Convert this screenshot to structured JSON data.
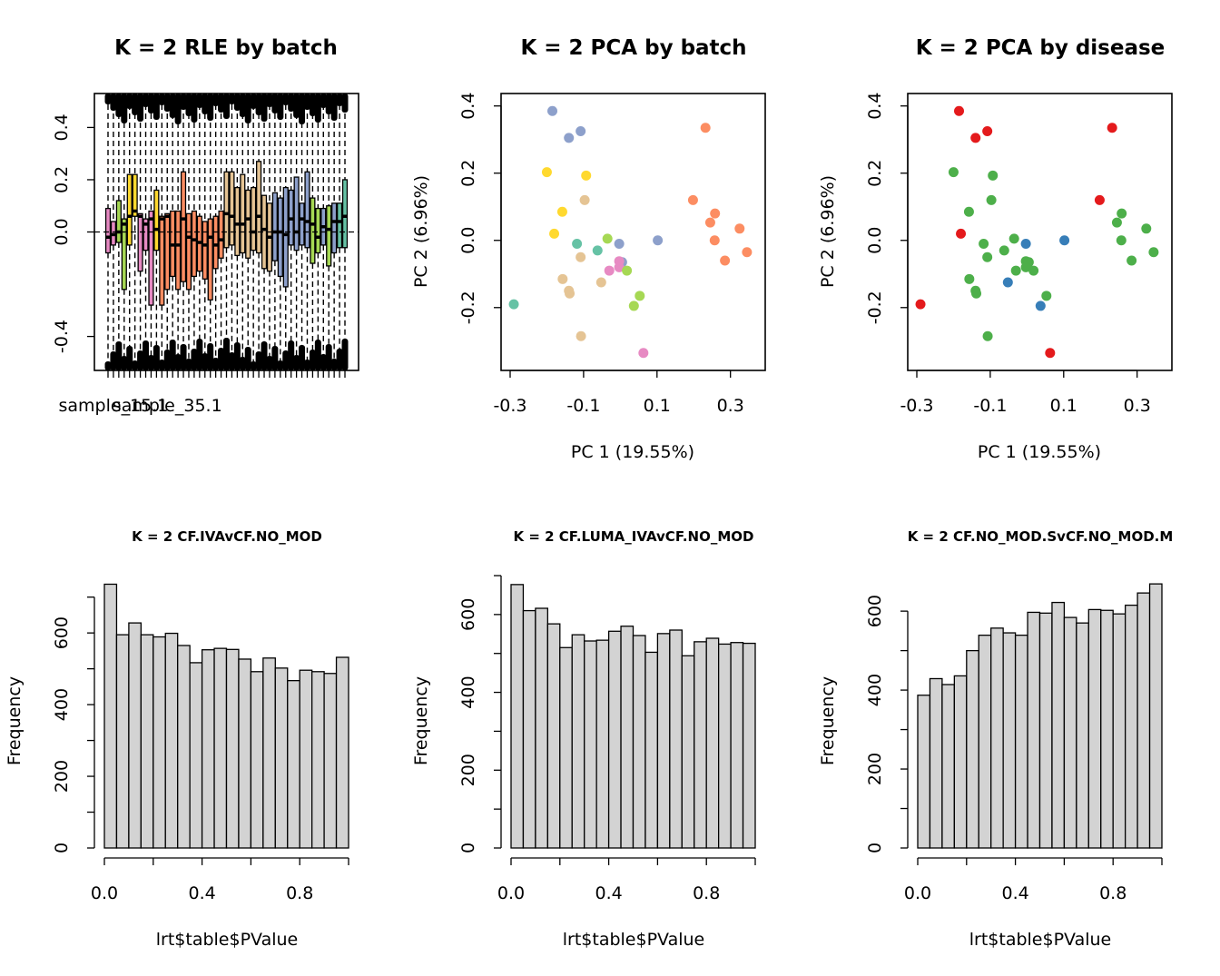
{
  "chart_data": [
    {
      "type": "boxplot",
      "title": "K = 2 RLE by batch",
      "ylim": [
        -0.53,
        0.53
      ],
      "yticks": [
        -0.4,
        0.0,
        0.2,
        0.4
      ],
      "ytick_labels": [
        "-0.4",
        "0.0",
        "0.2",
        "0.4"
      ],
      "xtick_labels": [
        "sample_15.1",
        "sample_35.1"
      ],
      "xtick_label_positions": [
        1,
        11
      ],
      "boxes": [
        {
          "q1": -0.08,
          "med": -0.02,
          "q3": 0.09,
          "color": "#E78AC3"
        },
        {
          "q1": -0.05,
          "med": -0.01,
          "q3": 0.04,
          "color": "#E78AC3"
        },
        {
          "q1": -0.04,
          "med": 0.0,
          "q3": 0.12,
          "color": "#A6D854"
        },
        {
          "q1": -0.22,
          "med": 0.03,
          "q3": 0.05,
          "color": "#A6D854"
        },
        {
          "q1": -0.05,
          "med": 0.06,
          "q3": 0.22,
          "color": "#FFD92F"
        },
        {
          "q1": 0.06,
          "med": 0.08,
          "q3": 0.22,
          "color": "#FFD92F"
        },
        {
          "q1": -0.15,
          "med": 0.06,
          "q3": 0.07,
          "color": "#E78AC3"
        },
        {
          "q1": -0.07,
          "med": 0.03,
          "q3": 0.05,
          "color": "#E78AC3"
        },
        {
          "q1": -0.28,
          "med": 0.05,
          "q3": 0.08,
          "color": "#E78AC3"
        },
        {
          "q1": -0.07,
          "med": 0.01,
          "q3": 0.16,
          "color": "#FFD92F"
        },
        {
          "q1": -0.28,
          "med": 0.05,
          "q3": 0.06,
          "color": "#FC8D62"
        },
        {
          "q1": -0.22,
          "med": 0.06,
          "q3": 0.07,
          "color": "#FC8D62"
        },
        {
          "q1": -0.17,
          "med": -0.05,
          "q3": 0.08,
          "color": "#FC8D62"
        },
        {
          "q1": -0.22,
          "med": -0.05,
          "q3": 0.08,
          "color": "#FC8D62"
        },
        {
          "q1": -0.19,
          "med": 0.05,
          "q3": 0.23,
          "color": "#FC8D62"
        },
        {
          "q1": -0.22,
          "med": -0.02,
          "q3": 0.07,
          "color": "#FC8D62"
        },
        {
          "q1": -0.17,
          "med": -0.03,
          "q3": 0.08,
          "color": "#FC8D62"
        },
        {
          "q1": -0.15,
          "med": -0.04,
          "q3": 0.06,
          "color": "#FC8D62"
        },
        {
          "q1": -0.18,
          "med": -0.05,
          "q3": 0.04,
          "color": "#FC8D62"
        },
        {
          "q1": -0.26,
          "med": -0.02,
          "q3": 0.05,
          "color": "#FC8D62"
        },
        {
          "q1": -0.14,
          "med": -0.05,
          "q3": 0.06,
          "color": "#FC8D62"
        },
        {
          "q1": -0.1,
          "med": -0.03,
          "q3": 0.08,
          "color": "#FC8D62"
        },
        {
          "q1": -0.06,
          "med": 0.07,
          "q3": 0.23,
          "color": "#E5C494"
        },
        {
          "q1": -0.05,
          "med": 0.06,
          "q3": 0.23,
          "color": "#E5C494"
        },
        {
          "q1": -0.09,
          "med": 0.03,
          "q3": 0.17,
          "color": "#E5C494"
        },
        {
          "q1": -0.08,
          "med": 0.03,
          "q3": 0.22,
          "color": "#E5C494"
        },
        {
          "q1": -0.1,
          "med": 0.05,
          "q3": 0.16,
          "color": "#E5C494"
        },
        {
          "q1": -0.07,
          "med": 0.0,
          "q3": 0.17,
          "color": "#E5C494"
        },
        {
          "q1": -0.08,
          "med": 0.06,
          "q3": 0.27,
          "color": "#E5C494"
        },
        {
          "q1": -0.14,
          "med": 0.01,
          "q3": 0.14,
          "color": "#E5C494"
        },
        {
          "q1": -0.15,
          "med": -0.02,
          "q3": 0.11,
          "color": "#E5C494"
        },
        {
          "q1": -0.11,
          "med": 0.0,
          "q3": 0.15,
          "color": "#8DA0CB"
        },
        {
          "q1": -0.17,
          "med": 0.0,
          "q3": 0.13,
          "color": "#8DA0CB"
        },
        {
          "q1": -0.21,
          "med": -0.01,
          "q3": 0.17,
          "color": "#8DA0CB"
        },
        {
          "q1": -0.05,
          "med": 0.05,
          "q3": 0.16,
          "color": "#8DA0CB"
        },
        {
          "q1": -0.07,
          "med": 0.0,
          "q3": 0.21,
          "color": "#8DA0CB"
        },
        {
          "q1": -0.05,
          "med": 0.05,
          "q3": 0.11,
          "color": "#8DA0CB"
        },
        {
          "q1": -0.06,
          "med": 0.04,
          "q3": 0.23,
          "color": "#8DA0CB"
        },
        {
          "q1": -0.12,
          "med": 0.03,
          "q3": 0.13,
          "color": "#A6D854"
        },
        {
          "q1": -0.08,
          "med": -0.02,
          "q3": 0.09,
          "color": "#A6D854"
        },
        {
          "q1": -0.05,
          "med": 0.02,
          "q3": 0.09,
          "color": "#8DA0CB"
        },
        {
          "q1": -0.13,
          "med": 0.01,
          "q3": 0.1,
          "color": "#A6D854"
        },
        {
          "q1": -0.08,
          "med": 0.04,
          "q3": 0.11,
          "color": "#8DA0CB"
        },
        {
          "q1": -0.06,
          "med": 0.04,
          "q3": 0.11,
          "color": "#66C2A5"
        },
        {
          "q1": -0.06,
          "med": 0.06,
          "q3": 0.2,
          "color": "#66C2A5"
        }
      ]
    },
    {
      "type": "scatter",
      "title": "K = 2 PCA by batch",
      "xlabel": "PC 1 (19.55%)",
      "ylabel": "PC 2 (6.96%)",
      "xlim": [
        -0.3,
        0.37
      ],
      "ylim": [
        -0.36,
        0.41
      ],
      "xticks": [
        -0.3,
        -0.1,
        0.1,
        0.3
      ],
      "xtick_labels": [
        "-0.3",
        "-0.1",
        "0.1",
        "0.3"
      ],
      "yticks": [
        -0.2,
        0.0,
        0.2,
        0.4
      ],
      "ytick_labels": [
        "-0.2",
        "0.0",
        "0.2",
        "0.4"
      ],
      "points": [
        {
          "x": -0.185,
          "y": 0.385,
          "color": "#8DA0CB"
        },
        {
          "x": -0.14,
          "y": 0.305,
          "color": "#8DA0CB"
        },
        {
          "x": -0.108,
          "y": 0.325,
          "color": "#8DA0CB"
        },
        {
          "x": -0.2,
          "y": 0.203,
          "color": "#FFD92F"
        },
        {
          "x": -0.093,
          "y": 0.193,
          "color": "#FFD92F"
        },
        {
          "x": -0.097,
          "y": 0.12,
          "color": "#E5C494"
        },
        {
          "x": -0.158,
          "y": 0.085,
          "color": "#FFD92F"
        },
        {
          "x": -0.18,
          "y": 0.02,
          "color": "#FFD92F"
        },
        {
          "x": -0.118,
          "y": -0.01,
          "color": "#66C2A5"
        },
        {
          "x": -0.108,
          "y": -0.05,
          "color": "#E5C494"
        },
        {
          "x": -0.062,
          "y": -0.03,
          "color": "#66C2A5"
        },
        {
          "x": -0.035,
          "y": 0.005,
          "color": "#A6D854"
        },
        {
          "x": -0.003,
          "y": -0.01,
          "color": "#8DA0CB"
        },
        {
          "x": 0.005,
          "y": -0.065,
          "color": "#8DA0CB"
        },
        {
          "x": 0.102,
          "y": 0.0,
          "color": "#8DA0CB"
        },
        {
          "x": -0.003,
          "y": -0.062,
          "color": "#E78AC3"
        },
        {
          "x": -0.03,
          "y": -0.09,
          "color": "#E78AC3"
        },
        {
          "x": -0.003,
          "y": -0.08,
          "color": "#E78AC3"
        },
        {
          "x": 0.018,
          "y": -0.09,
          "color": "#A6D854"
        },
        {
          "x": -0.157,
          "y": -0.115,
          "color": "#E5C494"
        },
        {
          "x": -0.14,
          "y": -0.15,
          "color": "#E5C494"
        },
        {
          "x": -0.138,
          "y": -0.158,
          "color": "#E5C494"
        },
        {
          "x": -0.052,
          "y": -0.125,
          "color": "#E5C494"
        },
        {
          "x": 0.053,
          "y": -0.165,
          "color": "#A6D854"
        },
        {
          "x": 0.037,
          "y": -0.195,
          "color": "#A6D854"
        },
        {
          "x": -0.29,
          "y": -0.19,
          "color": "#66C2A5"
        },
        {
          "x": -0.107,
          "y": -0.285,
          "color": "#E5C494"
        },
        {
          "x": 0.063,
          "y": -0.335,
          "color": "#E78AC3"
        },
        {
          "x": 0.232,
          "y": 0.335,
          "color": "#FC8D62"
        },
        {
          "x": 0.198,
          "y": 0.12,
          "color": "#FC8D62"
        },
        {
          "x": 0.258,
          "y": 0.08,
          "color": "#FC8D62"
        },
        {
          "x": 0.245,
          "y": 0.053,
          "color": "#FC8D62"
        },
        {
          "x": 0.325,
          "y": 0.035,
          "color": "#FC8D62"
        },
        {
          "x": 0.257,
          "y": 0.0,
          "color": "#FC8D62"
        },
        {
          "x": 0.345,
          "y": -0.035,
          "color": "#FC8D62"
        },
        {
          "x": 0.285,
          "y": -0.06,
          "color": "#FC8D62"
        }
      ]
    },
    {
      "type": "scatter",
      "title": "K = 2 PCA by disease",
      "xlabel": "PC 1 (19.55%)",
      "ylabel": "PC 2 (6.96%)",
      "xlim": [
        -0.3,
        0.37
      ],
      "ylim": [
        -0.36,
        0.41
      ],
      "xticks": [
        -0.3,
        -0.1,
        0.1,
        0.3
      ],
      "xtick_labels": [
        "-0.3",
        "-0.1",
        "0.1",
        "0.3"
      ],
      "yticks": [
        -0.2,
        0.0,
        0.2,
        0.4
      ],
      "ytick_labels": [
        "-0.2",
        "0.0",
        "0.2",
        "0.4"
      ],
      "points": [
        {
          "x": -0.185,
          "y": 0.385,
          "color": "#E41A1C"
        },
        {
          "x": -0.14,
          "y": 0.305,
          "color": "#E41A1C"
        },
        {
          "x": -0.108,
          "y": 0.325,
          "color": "#E41A1C"
        },
        {
          "x": -0.2,
          "y": 0.203,
          "color": "#4DAF4A"
        },
        {
          "x": -0.093,
          "y": 0.193,
          "color": "#4DAF4A"
        },
        {
          "x": -0.097,
          "y": 0.12,
          "color": "#4DAF4A"
        },
        {
          "x": -0.158,
          "y": 0.085,
          "color": "#4DAF4A"
        },
        {
          "x": -0.18,
          "y": 0.02,
          "color": "#E41A1C"
        },
        {
          "x": -0.118,
          "y": -0.01,
          "color": "#4DAF4A"
        },
        {
          "x": -0.108,
          "y": -0.05,
          "color": "#4DAF4A"
        },
        {
          "x": -0.062,
          "y": -0.03,
          "color": "#4DAF4A"
        },
        {
          "x": -0.035,
          "y": 0.005,
          "color": "#4DAF4A"
        },
        {
          "x": -0.003,
          "y": -0.01,
          "color": "#377EB8"
        },
        {
          "x": 0.005,
          "y": -0.065,
          "color": "#4DAF4A"
        },
        {
          "x": 0.102,
          "y": 0.0,
          "color": "#377EB8"
        },
        {
          "x": -0.003,
          "y": -0.062,
          "color": "#4DAF4A"
        },
        {
          "x": -0.03,
          "y": -0.09,
          "color": "#4DAF4A"
        },
        {
          "x": -0.003,
          "y": -0.08,
          "color": "#4DAF4A"
        },
        {
          "x": 0.018,
          "y": -0.09,
          "color": "#4DAF4A"
        },
        {
          "x": -0.157,
          "y": -0.115,
          "color": "#4DAF4A"
        },
        {
          "x": -0.14,
          "y": -0.15,
          "color": "#4DAF4A"
        },
        {
          "x": -0.138,
          "y": -0.158,
          "color": "#4DAF4A"
        },
        {
          "x": -0.052,
          "y": -0.125,
          "color": "#377EB8"
        },
        {
          "x": 0.053,
          "y": -0.165,
          "color": "#4DAF4A"
        },
        {
          "x": 0.037,
          "y": -0.195,
          "color": "#377EB8"
        },
        {
          "x": -0.29,
          "y": -0.19,
          "color": "#E41A1C"
        },
        {
          "x": -0.107,
          "y": -0.285,
          "color": "#4DAF4A"
        },
        {
          "x": 0.063,
          "y": -0.335,
          "color": "#E41A1C"
        },
        {
          "x": 0.232,
          "y": 0.335,
          "color": "#E41A1C"
        },
        {
          "x": 0.198,
          "y": 0.12,
          "color": "#E41A1C"
        },
        {
          "x": 0.258,
          "y": 0.08,
          "color": "#4DAF4A"
        },
        {
          "x": 0.245,
          "y": 0.053,
          "color": "#4DAF4A"
        },
        {
          "x": 0.325,
          "y": 0.035,
          "color": "#4DAF4A"
        },
        {
          "x": 0.257,
          "y": 0.0,
          "color": "#4DAF4A"
        },
        {
          "x": 0.345,
          "y": -0.035,
          "color": "#4DAF4A"
        },
        {
          "x": 0.285,
          "y": -0.06,
          "color": "#4DAF4A"
        }
      ]
    },
    {
      "type": "bar",
      "subtype": "histogram",
      "title": "K = 2 CF.IVAvCF.NO_MOD",
      "xlabel": "lrt$table$PValue",
      "ylabel": "Frequency",
      "bin_edges": [
        0,
        0.05,
        0.1,
        0.15,
        0.2,
        0.25,
        0.3,
        0.35,
        0.4,
        0.45,
        0.5,
        0.55,
        0.6,
        0.65,
        0.7,
        0.75,
        0.8,
        0.85,
        0.9,
        0.95,
        1.0
      ],
      "values": [
        736,
        595,
        628,
        595,
        589,
        599,
        565,
        517,
        553,
        557,
        554,
        527,
        492,
        530,
        502,
        467,
        496,
        492,
        487,
        532
      ],
      "bar_color": "#D3D3D3",
      "xlim": [
        0,
        1
      ],
      "ylim": [
        0,
        760
      ],
      "xticks": [
        0,
        0.2,
        0.4,
        0.6,
        0.8,
        1.0
      ],
      "xtick_labels": [
        "0.0",
        "",
        "0.4",
        "",
        "0.8",
        ""
      ],
      "yticks": [
        0,
        100,
        200,
        300,
        400,
        500,
        600,
        700
      ],
      "ytick_labels": [
        "0",
        "",
        "200",
        "",
        "400",
        "",
        "600",
        ""
      ]
    },
    {
      "type": "bar",
      "subtype": "histogram",
      "title": "K = 2 CF.LUMA_IVAvCF.NO_MOD",
      "xlabel": "lrt$table$PValue",
      "ylabel": "Frequency",
      "bin_edges": [
        0,
        0.05,
        0.1,
        0.15,
        0.2,
        0.25,
        0.3,
        0.35,
        0.4,
        0.45,
        0.5,
        0.55,
        0.6,
        0.65,
        0.7,
        0.75,
        0.8,
        0.85,
        0.9,
        0.95,
        1.0
      ],
      "values": [
        677,
        610,
        616,
        576,
        515,
        548,
        532,
        534,
        557,
        570,
        546,
        503,
        551,
        560,
        494,
        530,
        539,
        524,
        528,
        526
      ],
      "bar_color": "#D3D3D3",
      "xlim": [
        0,
        1
      ],
      "ylim": [
        0,
        700
      ],
      "xticks": [
        0,
        0.2,
        0.4,
        0.6,
        0.8,
        1.0
      ],
      "xtick_labels": [
        "0.0",
        "",
        "0.4",
        "",
        "0.8",
        ""
      ],
      "yticks": [
        0,
        100,
        200,
        300,
        400,
        500,
        600,
        700
      ],
      "ytick_labels": [
        "0",
        "",
        "200",
        "",
        "400",
        "",
        "600",
        ""
      ]
    },
    {
      "type": "bar",
      "subtype": "histogram",
      "title": "K = 2 CF.NO_MOD.SvCF.NO_MOD.M",
      "xlabel": "lrt$table$PValue",
      "ylabel": "Frequency",
      "bin_edges": [
        0,
        0.05,
        0.1,
        0.15,
        0.2,
        0.25,
        0.3,
        0.35,
        0.4,
        0.45,
        0.5,
        0.55,
        0.6,
        0.65,
        0.7,
        0.75,
        0.8,
        0.85,
        0.9,
        0.95,
        1.0
      ],
      "values": [
        387,
        429,
        414,
        436,
        500,
        539,
        557,
        545,
        539,
        597,
        595,
        622,
        584,
        570,
        604,
        602,
        593,
        615,
        646,
        669
      ],
      "bar_color": "#D3D3D3",
      "xlim": [
        0,
        1
      ],
      "ylim": [
        0,
        690
      ],
      "xticks": [
        0,
        0.2,
        0.4,
        0.6,
        0.8,
        1.0
      ],
      "xtick_labels": [
        "0.0",
        "",
        "0.4",
        "",
        "0.8",
        ""
      ],
      "yticks": [
        0,
        100,
        200,
        300,
        400,
        500,
        600
      ],
      "ytick_labels": [
        "0",
        "",
        "200",
        "",
        "400",
        "",
        "600"
      ]
    }
  ]
}
